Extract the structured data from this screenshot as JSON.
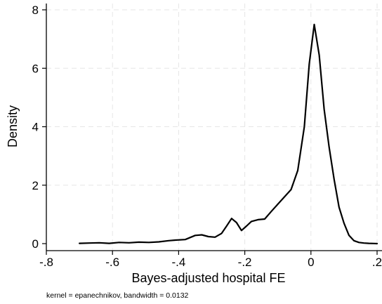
{
  "chart_data": {
    "type": "line",
    "title": "",
    "xlabel": "Bayes-adjusted hospital FE",
    "ylabel": "Density",
    "note": "kernel = epanechnikov, bandwidth = 0.0132",
    "xlim": [
      -0.8,
      0.2
    ],
    "ylim": [
      0,
      8
    ],
    "x_ticks": [
      -0.8,
      -0.6,
      -0.4,
      -0.2,
      0,
      0.2
    ],
    "x_tick_labels": [
      "-.8",
      "-.6",
      "-.4",
      "-.2",
      "0",
      ".2"
    ],
    "y_ticks": [
      0,
      2,
      4,
      6,
      8
    ],
    "y_tick_labels": [
      "0",
      "2",
      "4",
      "6",
      "8"
    ],
    "grid": true,
    "line_color": "#000000",
    "grid_color": "#e6e6e6",
    "series": [
      {
        "x": [
          -0.7,
          -0.67,
          -0.64,
          -0.61,
          -0.58,
          -0.55,
          -0.52,
          -0.49,
          -0.46,
          -0.43,
          -0.41,
          -0.38,
          -0.35,
          -0.33,
          -0.31,
          -0.29,
          -0.27,
          -0.255,
          -0.24,
          -0.225,
          -0.21,
          -0.195,
          -0.18,
          -0.16,
          -0.14,
          -0.12,
          -0.1,
          -0.08,
          -0.06,
          -0.04,
          -0.02,
          -0.005,
          0.01,
          0.025,
          0.04,
          0.055,
          0.07,
          0.085,
          0.1,
          0.115,
          0.13,
          0.145,
          0.16,
          0.175,
          0.19,
          0.2
        ],
        "y": [
          0.01,
          0.02,
          0.03,
          0.01,
          0.04,
          0.03,
          0.05,
          0.04,
          0.06,
          0.1,
          0.12,
          0.14,
          0.28,
          0.3,
          0.24,
          0.22,
          0.35,
          0.6,
          0.86,
          0.72,
          0.45,
          0.6,
          0.76,
          0.82,
          0.84,
          1.1,
          1.35,
          1.6,
          1.85,
          2.5,
          4.0,
          6.15,
          7.5,
          6.45,
          4.6,
          3.3,
          2.2,
          1.25,
          0.7,
          0.28,
          0.1,
          0.04,
          0.02,
          0.01,
          0.005,
          0.0
        ]
      }
    ]
  }
}
